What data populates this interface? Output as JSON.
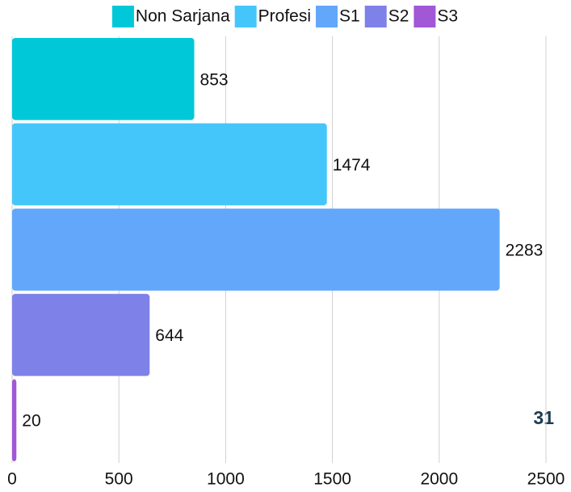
{
  "chart_data": {
    "type": "bar",
    "orientation": "horizontal",
    "series": [
      {
        "name": "Non Sarjana",
        "color": "#00c8d8",
        "values": [
          853
        ]
      },
      {
        "name": "Profesi",
        "color": "#45c6fb",
        "values": [
          1474
        ]
      },
      {
        "name": "S1",
        "color": "#62a7fa",
        "values": [
          2283
        ]
      },
      {
        "name": "S2",
        "color": "#7e81e8",
        "values": [
          644
        ]
      },
      {
        "name": "S3",
        "color": "#a157d6",
        "values": [
          20
        ]
      }
    ],
    "xlim": [
      0,
      2500
    ],
    "xticks": [
      0,
      500,
      1000,
      1500,
      2000,
      2500
    ],
    "grid": true,
    "legend": "top",
    "annotation": "31"
  }
}
